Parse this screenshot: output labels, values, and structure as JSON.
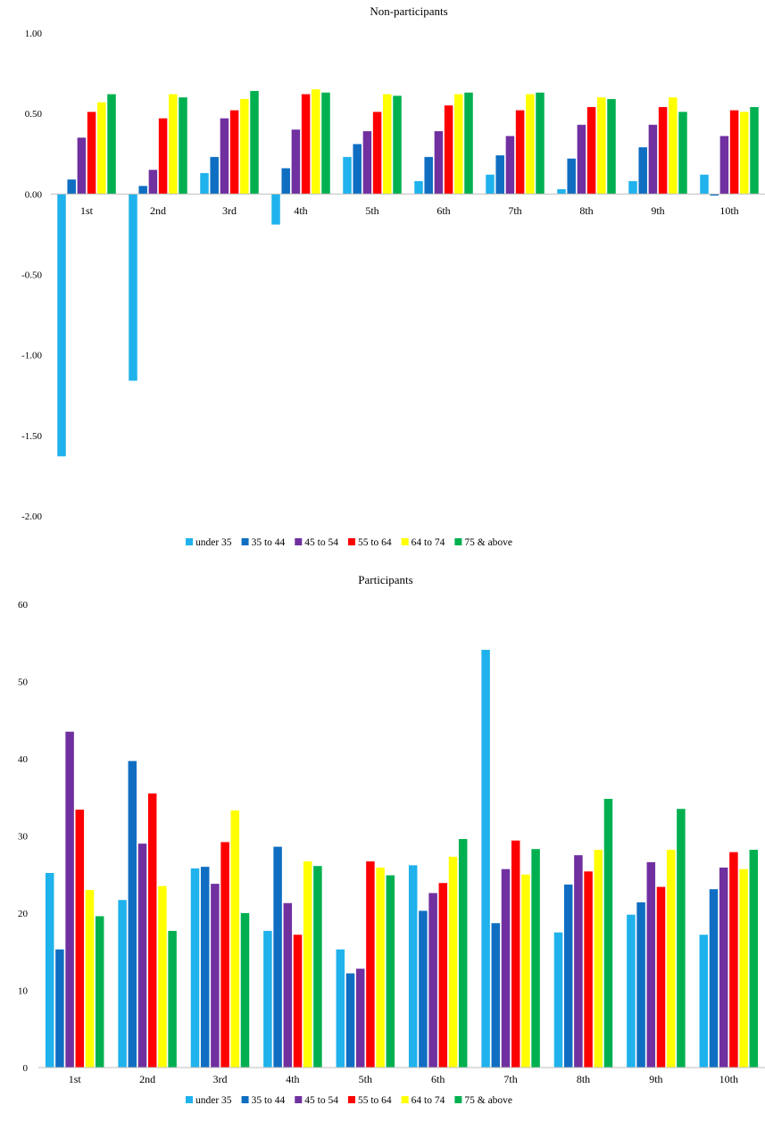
{
  "chart_data": [
    {
      "type": "bar",
      "title": "Non-participants",
      "categories": [
        "1st",
        "2nd",
        "3rd",
        "4th",
        "5th",
        "6th",
        "7th",
        "8th",
        "9th",
        "10th"
      ],
      "ylim": [
        -2.0,
        1.0
      ],
      "yticks": [
        1.0,
        0.5,
        0.0,
        -0.5,
        -1.0,
        -1.5,
        -2.0
      ],
      "ytick_labels": [
        "1.00",
        "0.50",
        "0.00",
        "-0.50",
        "-1.00",
        "-1.50",
        "-2.00"
      ],
      "grid": false,
      "legend": "bottom",
      "series": [
        {
          "name": "under 35",
          "color": "#1fb2ec",
          "values": [
            -1.63,
            -1.16,
            0.13,
            -0.19,
            0.23,
            0.08,
            0.12,
            0.03,
            0.08,
            0.12
          ]
        },
        {
          "name": "35 to 44",
          "color": "#0f6ec2",
          "values": [
            0.09,
            0.05,
            0.23,
            0.16,
            0.31,
            0.23,
            0.24,
            0.22,
            0.29,
            -0.01
          ]
        },
        {
          "name": "45 to 54",
          "color": "#7030a0",
          "values": [
            0.35,
            0.15,
            0.47,
            0.4,
            0.39,
            0.39,
            0.36,
            0.43,
            0.43,
            0.36
          ]
        },
        {
          "name": "55 to 64",
          "color": "#ff0000",
          "values": [
            0.51,
            0.47,
            0.52,
            0.62,
            0.51,
            0.55,
            0.52,
            0.54,
            0.54,
            0.52
          ]
        },
        {
          "name": "64 to 74",
          "color": "#ffff00",
          "values": [
            0.57,
            0.62,
            0.59,
            0.65,
            0.62,
            0.62,
            0.62,
            0.6,
            0.6,
            0.51
          ]
        },
        {
          "name": "75 & above",
          "color": "#00b050",
          "values": [
            0.62,
            0.6,
            0.64,
            0.63,
            0.61,
            0.63,
            0.63,
            0.59,
            0.51,
            0.54
          ]
        }
      ]
    },
    {
      "type": "bar",
      "title": "Participants",
      "categories": [
        "1st",
        "2nd",
        "3rd",
        "4th",
        "5th",
        "6th",
        "7th",
        "8th",
        "9th",
        "10th"
      ],
      "ylim": [
        0,
        60
      ],
      "yticks": [
        60,
        50,
        40,
        30,
        20,
        10,
        0
      ],
      "ytick_labels": [
        "60",
        "50",
        "40",
        "30",
        "20",
        "10",
        "0"
      ],
      "grid": false,
      "legend": "bottom",
      "series": [
        {
          "name": "under 35",
          "color": "#1fb2ec",
          "values": [
            25.2,
            21.7,
            25.8,
            17.7,
            15.3,
            26.2,
            54.1,
            17.5,
            19.8,
            17.2
          ]
        },
        {
          "name": "35 to 44",
          "color": "#0f6ec2",
          "values": [
            15.3,
            39.7,
            26.0,
            28.6,
            12.2,
            20.3,
            18.7,
            23.7,
            21.4,
            23.1
          ]
        },
        {
          "name": "45 to 54",
          "color": "#7030a0",
          "values": [
            43.5,
            29.0,
            23.8,
            21.3,
            12.8,
            22.6,
            25.7,
            27.5,
            26.6,
            25.9
          ]
        },
        {
          "name": "55 to 64",
          "color": "#ff0000",
          "values": [
            33.4,
            35.5,
            29.2,
            17.2,
            26.7,
            23.9,
            29.4,
            25.4,
            23.4,
            27.9
          ]
        },
        {
          "name": "64 to 74",
          "color": "#ffff00",
          "values": [
            23.0,
            23.5,
            33.3,
            26.7,
            25.9,
            27.3,
            25.0,
            28.2,
            28.2,
            25.7
          ]
        },
        {
          "name": "75 & above",
          "color": "#00b050",
          "values": [
            19.6,
            17.7,
            20.0,
            26.1,
            24.9,
            29.6,
            28.3,
            34.8,
            33.5,
            28.2
          ]
        }
      ]
    }
  ]
}
